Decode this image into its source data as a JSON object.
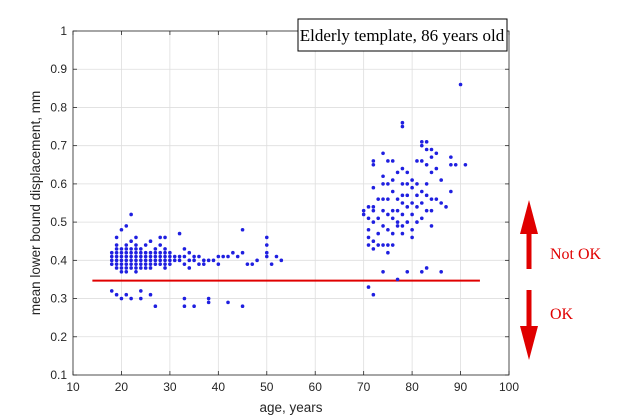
{
  "chart_data": {
    "type": "scatter",
    "title": "Elderly template, 86 years old",
    "xlabel": "age, years",
    "ylabel": "mean lower bound displacement, mm",
    "xlim": [
      10,
      100
    ],
    "ylim": [
      0.1,
      1
    ],
    "xticks": [
      "10",
      "20",
      "30",
      "40",
      "50",
      "60",
      "70",
      "80",
      "90",
      "100"
    ],
    "yticks": [
      "0.1",
      "0.2",
      "0.3",
      "0.4",
      "0.5",
      "0.6",
      "0.7",
      "0.8",
      "0.9",
      "1"
    ],
    "grid": true,
    "threshold": {
      "y": 0.347,
      "x_start": 14,
      "x_end": 94,
      "color": "#e00000"
    },
    "point_color": "#1f1fe0",
    "annotations": {
      "up_label": "Not OK",
      "down_label": "OK",
      "color": "#e00000"
    },
    "series": [
      {
        "points": [
          [
            18,
            0.42
          ],
          [
            18,
            0.41
          ],
          [
            18,
            0.4
          ],
          [
            18,
            0.39
          ],
          [
            18,
            0.32
          ],
          [
            19,
            0.44
          ],
          [
            19,
            0.43
          ],
          [
            19,
            0.42
          ],
          [
            19,
            0.41
          ],
          [
            19,
            0.4
          ],
          [
            19,
            0.39
          ],
          [
            19,
            0.38
          ],
          [
            19,
            0.31
          ],
          [
            19,
            0.46
          ],
          [
            20,
            0.43
          ],
          [
            20,
            0.42
          ],
          [
            20,
            0.41
          ],
          [
            20,
            0.4
          ],
          [
            20,
            0.39
          ],
          [
            20,
            0.38
          ],
          [
            20,
            0.37
          ],
          [
            20,
            0.3
          ],
          [
            20,
            0.48
          ],
          [
            21,
            0.44
          ],
          [
            21,
            0.43
          ],
          [
            21,
            0.42
          ],
          [
            21,
            0.41
          ],
          [
            21,
            0.4
          ],
          [
            21,
            0.39
          ],
          [
            21,
            0.38
          ],
          [
            21,
            0.37
          ],
          [
            21,
            0.49
          ],
          [
            21,
            0.31
          ],
          [
            22,
            0.45
          ],
          [
            22,
            0.43
          ],
          [
            22,
            0.42
          ],
          [
            22,
            0.41
          ],
          [
            22,
            0.4
          ],
          [
            22,
            0.39
          ],
          [
            22,
            0.38
          ],
          [
            22,
            0.52
          ],
          [
            22,
            0.3
          ],
          [
            23,
            0.44
          ],
          [
            23,
            0.43
          ],
          [
            23,
            0.42
          ],
          [
            23,
            0.41
          ],
          [
            23,
            0.4
          ],
          [
            23,
            0.39
          ],
          [
            23,
            0.38
          ],
          [
            23,
            0.37
          ],
          [
            23,
            0.46
          ],
          [
            24,
            0.43
          ],
          [
            24,
            0.42
          ],
          [
            24,
            0.41
          ],
          [
            24,
            0.4
          ],
          [
            24,
            0.39
          ],
          [
            24,
            0.38
          ],
          [
            24,
            0.3
          ],
          [
            24,
            0.32
          ],
          [
            25,
            0.42
          ],
          [
            25,
            0.41
          ],
          [
            25,
            0.4
          ],
          [
            25,
            0.39
          ],
          [
            25,
            0.38
          ],
          [
            25,
            0.44
          ],
          [
            26,
            0.42
          ],
          [
            26,
            0.41
          ],
          [
            26,
            0.4
          ],
          [
            26,
            0.39
          ],
          [
            26,
            0.38
          ],
          [
            26,
            0.45
          ],
          [
            26,
            0.31
          ],
          [
            27,
            0.43
          ],
          [
            27,
            0.42
          ],
          [
            27,
            0.41
          ],
          [
            27,
            0.4
          ],
          [
            27,
            0.39
          ],
          [
            27,
            0.28
          ],
          [
            28,
            0.46
          ],
          [
            28,
            0.44
          ],
          [
            28,
            0.42
          ],
          [
            28,
            0.41
          ],
          [
            28,
            0.4
          ],
          [
            28,
            0.39
          ],
          [
            29,
            0.46
          ],
          [
            29,
            0.43
          ],
          [
            29,
            0.42
          ],
          [
            29,
            0.41
          ],
          [
            29,
            0.4
          ],
          [
            29,
            0.39
          ],
          [
            29,
            0.38
          ],
          [
            30,
            0.42
          ],
          [
            30,
            0.41
          ],
          [
            30,
            0.4
          ],
          [
            30,
            0.39
          ],
          [
            31,
            0.41
          ],
          [
            31,
            0.4
          ],
          [
            32,
            0.47
          ],
          [
            32,
            0.41
          ],
          [
            32,
            0.4
          ],
          [
            33,
            0.43
          ],
          [
            33,
            0.41
          ],
          [
            33,
            0.39
          ],
          [
            33,
            0.3
          ],
          [
            33,
            0.28
          ],
          [
            34,
            0.42
          ],
          [
            34,
            0.4
          ],
          [
            34,
            0.38
          ],
          [
            35,
            0.41
          ],
          [
            35,
            0.4
          ],
          [
            35,
            0.28
          ],
          [
            36,
            0.41
          ],
          [
            36,
            0.39
          ],
          [
            37,
            0.4
          ],
          [
            37,
            0.39
          ],
          [
            38,
            0.4
          ],
          [
            38,
            0.3
          ],
          [
            38,
            0.29
          ],
          [
            39,
            0.4
          ],
          [
            40,
            0.41
          ],
          [
            40,
            0.39
          ],
          [
            41,
            0.41
          ],
          [
            42,
            0.41
          ],
          [
            42,
            0.29
          ],
          [
            43,
            0.42
          ],
          [
            44,
            0.41
          ],
          [
            45,
            0.48
          ],
          [
            45,
            0.42
          ],
          [
            45,
            0.28
          ],
          [
            46,
            0.39
          ],
          [
            47,
            0.39
          ],
          [
            48,
            0.4
          ],
          [
            50,
            0.46
          ],
          [
            50,
            0.44
          ],
          [
            50,
            0.42
          ],
          [
            50,
            0.41
          ],
          [
            51,
            0.39
          ],
          [
            52,
            0.41
          ],
          [
            53,
            0.4
          ],
          [
            70,
            0.53
          ],
          [
            70,
            0.52
          ],
          [
            71,
            0.54
          ],
          [
            71,
            0.51
          ],
          [
            71,
            0.48
          ],
          [
            71,
            0.46
          ],
          [
            71,
            0.33
          ],
          [
            71,
            0.44
          ],
          [
            72,
            0.66
          ],
          [
            72,
            0.65
          ],
          [
            72,
            0.59
          ],
          [
            72,
            0.54
          ],
          [
            72,
            0.53
          ],
          [
            72,
            0.5
          ],
          [
            72,
            0.45
          ],
          [
            72,
            0.43
          ],
          [
            72,
            0.31
          ],
          [
            73,
            0.56
          ],
          [
            73,
            0.51
          ],
          [
            73,
            0.47
          ],
          [
            73,
            0.44
          ],
          [
            74,
            0.68
          ],
          [
            74,
            0.62
          ],
          [
            74,
            0.6
          ],
          [
            74,
            0.56
          ],
          [
            74,
            0.53
          ],
          [
            74,
            0.49
          ],
          [
            74,
            0.44
          ],
          [
            74,
            0.37
          ],
          [
            75,
            0.66
          ],
          [
            75,
            0.6
          ],
          [
            75,
            0.56
          ],
          [
            75,
            0.52
          ],
          [
            75,
            0.48
          ],
          [
            75,
            0.44
          ],
          [
            75,
            0.42
          ],
          [
            76,
            0.66
          ],
          [
            76,
            0.61
          ],
          [
            76,
            0.58
          ],
          [
            76,
            0.53
          ],
          [
            76,
            0.51
          ],
          [
            76,
            0.47
          ],
          [
            76,
            0.44
          ],
          [
            77,
            0.63
          ],
          [
            77,
            0.56
          ],
          [
            77,
            0.53
          ],
          [
            77,
            0.5
          ],
          [
            77,
            0.49
          ],
          [
            77,
            0.35
          ],
          [
            78,
            0.76
          ],
          [
            78,
            0.75
          ],
          [
            78,
            0.64
          ],
          [
            78,
            0.6
          ],
          [
            78,
            0.57
          ],
          [
            78,
            0.55
          ],
          [
            78,
            0.52
          ],
          [
            78,
            0.49
          ],
          [
            78,
            0.47
          ],
          [
            79,
            0.63
          ],
          [
            79,
            0.6
          ],
          [
            79,
            0.57
          ],
          [
            79,
            0.54
          ],
          [
            79,
            0.5
          ],
          [
            79,
            0.37
          ],
          [
            80,
            0.61
          ],
          [
            80,
            0.59
          ],
          [
            80,
            0.55
          ],
          [
            80,
            0.52
          ],
          [
            80,
            0.48
          ],
          [
            80,
            0.46
          ],
          [
            81,
            0.66
          ],
          [
            81,
            0.6
          ],
          [
            81,
            0.57
          ],
          [
            81,
            0.54
          ],
          [
            81,
            0.5
          ],
          [
            82,
            0.71
          ],
          [
            82,
            0.7
          ],
          [
            82,
            0.66
          ],
          [
            82,
            0.58
          ],
          [
            82,
            0.55
          ],
          [
            82,
            0.51
          ],
          [
            82,
            0.37
          ],
          [
            83,
            0.71
          ],
          [
            83,
            0.69
          ],
          [
            83,
            0.65
          ],
          [
            83,
            0.6
          ],
          [
            83,
            0.57
          ],
          [
            83,
            0.53
          ],
          [
            83,
            0.38
          ],
          [
            84,
            0.69
          ],
          [
            84,
            0.67
          ],
          [
            84,
            0.63
          ],
          [
            84,
            0.56
          ],
          [
            84,
            0.53
          ],
          [
            84,
            0.49
          ],
          [
            85,
            0.68
          ],
          [
            85,
            0.64
          ],
          [
            85,
            0.56
          ],
          [
            86,
            0.61
          ],
          [
            86,
            0.55
          ],
          [
            86,
            0.37
          ],
          [
            87,
            0.54
          ],
          [
            88,
            0.67
          ],
          [
            88,
            0.65
          ],
          [
            88,
            0.58
          ],
          [
            89,
            0.65
          ],
          [
            90,
            0.86
          ],
          [
            91,
            0.65
          ]
        ]
      }
    ]
  }
}
